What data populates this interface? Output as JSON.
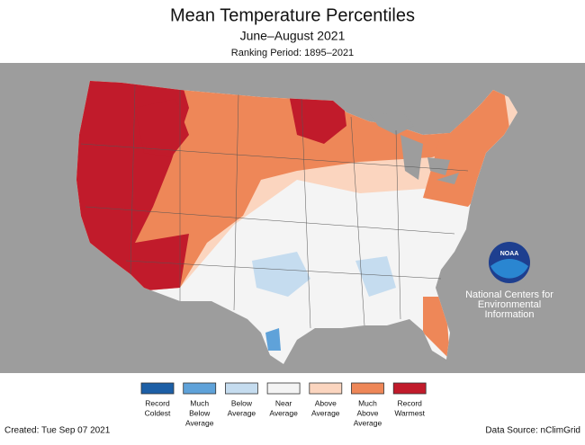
{
  "header": {
    "title": "Mean Temperature Percentiles",
    "subtitle": "June–August 2021",
    "period": "Ranking Period: 1895–2021"
  },
  "logo": {
    "text": "NOAA",
    "lines": [
      "National Centers for",
      "Environmental",
      "Information"
    ]
  },
  "legend": [
    {
      "lines": [
        "Record",
        "Coldest"
      ],
      "color": "#1d5fa6"
    },
    {
      "lines": [
        "Much",
        "Below",
        "Average"
      ],
      "color": "#5fa2d9"
    },
    {
      "lines": [
        "Below",
        "Average"
      ],
      "color": "#c5dcef"
    },
    {
      "lines": [
        "Near",
        "Average"
      ],
      "color": "#f4f4f4"
    },
    {
      "lines": [
        "Above",
        "Average"
      ],
      "color": "#fbd5bf"
    },
    {
      "lines": [
        "Much",
        "Above",
        "Average"
      ],
      "color": "#ee8758"
    },
    {
      "lines": [
        "Record",
        "Warmest"
      ],
      "color": "#c11b2b"
    }
  ],
  "footer": {
    "created": "Created: Tue Sep 07 2021",
    "source": "Data Source: nClimGrid"
  }
}
